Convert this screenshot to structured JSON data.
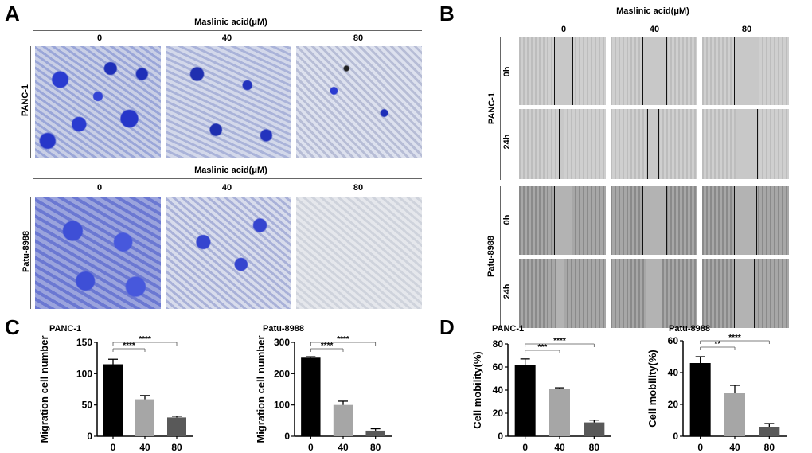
{
  "panels": {
    "A": "A",
    "B": "B",
    "C": "C",
    "D": "D"
  },
  "panel_a": {
    "header_top": "Maslinic acid(μM)",
    "header_bottom": "Maslinic acid(μM)",
    "concentrations": [
      "0",
      "40",
      "80"
    ],
    "row_top": "PANC-1",
    "row_bottom": "Patu-8988"
  },
  "panel_b": {
    "header": "Maslinic acid(μM)",
    "concentrations": [
      "0",
      "40",
      "80"
    ],
    "group_top": "PANC-1",
    "group_bottom": "Patu-8988",
    "times": [
      "0h",
      "24h"
    ]
  },
  "chart_data": [
    {
      "type": "bar",
      "title": "PANC-1",
      "ylabel": "Migration cell number",
      "categories": [
        "0",
        "40",
        "80"
      ],
      "values": [
        115,
        59,
        30
      ],
      "errors": [
        8,
        6,
        2
      ],
      "ylim": [
        0,
        150
      ],
      "yticks": [
        "0",
        "50",
        "100",
        "150"
      ],
      "significance": [
        "****",
        "****"
      ],
      "colors": [
        "#000000",
        "#a6a6a6",
        "#595959"
      ]
    },
    {
      "type": "bar",
      "title": "Patu-8988",
      "ylabel": "Migration cell number",
      "categories": [
        "0",
        "40",
        "80"
      ],
      "values": [
        251,
        100,
        18
      ],
      "errors": [
        3,
        12,
        6
      ],
      "ylim": [
        0,
        300
      ],
      "yticks": [
        "0",
        "100",
        "200",
        "300"
      ],
      "significance": [
        "****",
        "****"
      ],
      "colors": [
        "#000000",
        "#a6a6a6",
        "#595959"
      ]
    },
    {
      "type": "bar",
      "title": "PANC-1",
      "ylabel": "Cell mobility(%)",
      "categories": [
        "0",
        "40",
        "80"
      ],
      "values": [
        62,
        41,
        12
      ],
      "errors": [
        5,
        1,
        2
      ],
      "ylim": [
        0,
        80
      ],
      "yticks": [
        "0",
        "20",
        "40",
        "60",
        "80"
      ],
      "significance": [
        "***",
        "****"
      ],
      "colors": [
        "#000000",
        "#a6a6a6",
        "#595959"
      ]
    },
    {
      "type": "bar",
      "title": "Patu-8988",
      "ylabel": "Cell mobility(%)",
      "categories": [
        "0",
        "40",
        "80"
      ],
      "values": [
        46,
        27,
        6
      ],
      "errors": [
        4,
        5,
        2
      ],
      "ylim": [
        0,
        60
      ],
      "yticks": [
        "0",
        "20",
        "40",
        "60"
      ],
      "significance": [
        "**",
        "****"
      ],
      "colors": [
        "#000000",
        "#a6a6a6",
        "#595959"
      ]
    }
  ]
}
